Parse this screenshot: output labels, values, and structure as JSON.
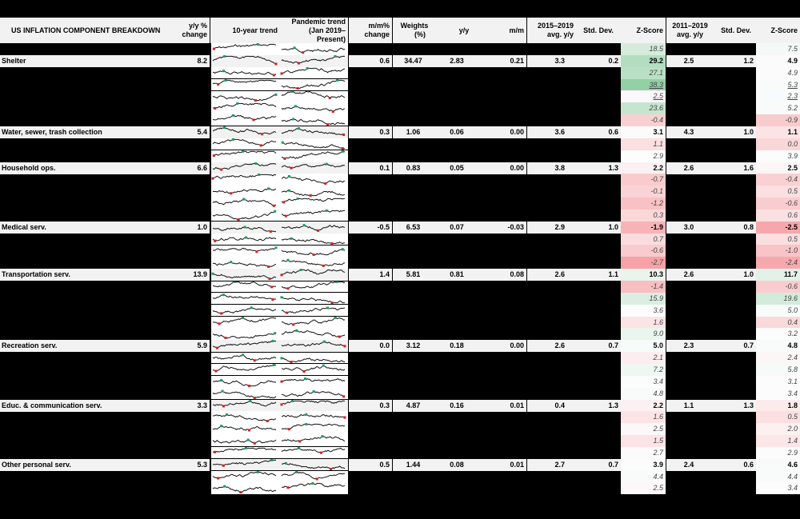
{
  "title": "US INFLATION COMPONENT BREAKDOWN",
  "headers": {
    "yy_change": [
      "y/y %",
      "change"
    ],
    "ten_year": "10-year trend",
    "pandemic": [
      "Pandemic trend",
      "(Jan 2019–Present)"
    ],
    "mm_change": [
      "m/m%",
      "change"
    ],
    "weights": [
      "Weights",
      "(%)"
    ],
    "yy": "y/y",
    "mm": "m/m",
    "avg_1519": [
      "2015–2019",
      "avg. y/y"
    ],
    "std1": "Std. Dev.",
    "z1": "Z-Score",
    "avg_1119": [
      "2011–2019",
      "avg. y/y"
    ],
    "std2": "Std. Dev.",
    "z2": "Z-Score"
  },
  "colors": {
    "header_bg": "#f2f2f2",
    "background": "#000000",
    "spark_high": "#1a9e5f",
    "spark_low": "#d62020"
  },
  "rows": [
    {
      "z1": "18.5",
      "z2": "7.5",
      "c1": "#d5ecdc",
      "c2": "#f4f9f7"
    },
    {
      "label": "Shelter",
      "yy_change": "8.2",
      "mm_change": "0.6",
      "weights": "34.47",
      "yy": "2.83",
      "mm": "0.21",
      "avg1": "3.3",
      "std1": "0.2",
      "z1": "29.2",
      "avg2": "2.5",
      "std2": "1.2",
      "z2": "4.9",
      "c1": "#b3ddc0",
      "c2": "#fbfbfb"
    },
    {
      "z1": "27.1",
      "z2": "4.9",
      "c1": "#b9e0c5",
      "c2": "#fbfbfb"
    },
    {
      "z1": "38.3",
      "z2": "5.3",
      "c1": "#93d0a6",
      "c2": "#f8fbfa",
      "ul": true
    },
    {
      "z1": "2.5",
      "z2": "2.3",
      "c1": "#fcf7fa",
      "c2": "#f8fbfb",
      "ul": true
    },
    {
      "z1": "23.6",
      "z2": "5.2",
      "c1": "#c6e5cf",
      "c2": "#f8fbfa"
    },
    {
      "z1": "-0.4",
      "z2": "-0.9",
      "c1": "#f9d0d2",
      "c2": "#f8cbcd"
    },
    {
      "label": "Water, sewer, trash collection",
      "yy_change": "5.4",
      "mm_change": "0.3",
      "weights": "1.06",
      "yy": "0.06",
      "mm": "0.00",
      "avg1": "3.6",
      "std1": "0.6",
      "z1": "3.1",
      "avg2": "4.3",
      "std2": "1.0",
      "z2": "1.1",
      "c1": "#fcfbfc",
      "c2": "#fce3e5"
    },
    {
      "z1": "1.1",
      "z2": "0.0",
      "c1": "#fbdfe1",
      "c2": "#f9d6d8"
    },
    {
      "z1": "2.9",
      "z2": "3.9",
      "c1": "#fdfdfd",
      "c2": "#fcfcfd"
    },
    {
      "label": "Household ops.",
      "yy_change": "6.6",
      "mm_change": "0.1",
      "weights": "0.83",
      "yy": "0.05",
      "mm": "0.00",
      "avg1": "3.8",
      "std1": "1.3",
      "z1": "2.2",
      "avg2": "2.6",
      "std2": "1.6",
      "z2": "2.5",
      "c1": "#fcf1f2",
      "c2": "#fcf6f7"
    },
    {
      "z1": "-0.7",
      "z2": "-0.4",
      "c1": "#f9cbcd",
      "c2": "#f9d1d3"
    },
    {
      "z1": "-0.1",
      "z2": "0.5",
      "c1": "#f9d3d5",
      "c2": "#fbdfe1"
    },
    {
      "z1": "-1.2",
      "z2": "-0.6",
      "c1": "#f8c1c4",
      "c2": "#f9cdd0"
    },
    {
      "z1": "0.3",
      "z2": "0.6",
      "c1": "#fad8da",
      "c2": "#fbe0e2"
    },
    {
      "label": "Medical serv.",
      "yy_change": "1.0",
      "mm_change": "-0.5",
      "weights": "6.53",
      "yy": "0.07",
      "mm": "-0.03",
      "avg1": "2.9",
      "std1": "1.0",
      "z1": "-1.9",
      "avg2": "3.0",
      "std2": "0.8",
      "z2": "-2.5",
      "c1": "#f7b3b6",
      "c2": "#f6a7ab"
    },
    {
      "z1": "0.7",
      "z2": "0.5",
      "c1": "#fadcde",
      "c2": "#fbdfe1"
    },
    {
      "z1": "-0.6",
      "z2": "-1.0",
      "c1": "#f9cbce",
      "c2": "#f8c4c7"
    },
    {
      "z1": "-2.7",
      "z2": "-2.4",
      "c1": "#f6a2a6",
      "c2": "#f6a9ac"
    },
    {
      "label": "Transportation serv.",
      "yy_change": "13.9",
      "mm_change": "1.4",
      "weights": "5.81",
      "yy": "0.81",
      "mm": "0.08",
      "avg1": "2.6",
      "std1": "1.1",
      "z1": "10.3",
      "avg2": "2.6",
      "std2": "1.0",
      "z2": "11.7",
      "c1": "#e8f4ec",
      "c2": "#e3f2e8"
    },
    {
      "z1": "-1.4",
      "z2": "-0.6",
      "c1": "#f8bec1",
      "c2": "#f9cdd0"
    },
    {
      "z1": "15.9",
      "z2": "19.6",
      "c1": "#dbeee1",
      "c2": "#d3ebdb"
    },
    {
      "z1": "3.6",
      "z2": "5.0",
      "c1": "#fcfcfd",
      "c2": "#f8fbfa"
    },
    {
      "z1": "1.6",
      "z2": "0.4",
      "c1": "#fce4e6",
      "c2": "#fad9db"
    },
    {
      "z1": "9.0",
      "z2": "3.2",
      "c1": "#eaf5ee",
      "c2": "#fcfcfd"
    },
    {
      "label": "Recreation serv.",
      "yy_change": "5.9",
      "mm_change": "0.0",
      "weights": "3.12",
      "yy": "0.18",
      "mm": "0.00",
      "avg1": "2.6",
      "std1": "0.7",
      "z1": "5.0",
      "avg2": "2.3",
      "std2": "0.7",
      "z2": "4.8",
      "c1": "#f7fbf9",
      "c2": "#f8fbfa"
    },
    {
      "z1": "2.1",
      "z2": "2.4",
      "c1": "#fcedef",
      "c2": "#fcf6f7"
    },
    {
      "z1": "7.2",
      "z2": "5.8",
      "c1": "#eff7f2",
      "c2": "#f6faf8"
    },
    {
      "z1": "3.4",
      "z2": "3.1",
      "c1": "#fcfcfd",
      "c2": "#fcfcfd"
    },
    {
      "z1": "4.8",
      "z2": "3.4",
      "c1": "#f8fbfa",
      "c2": "#fcfcfd"
    },
    {
      "label": "Educ. & communication serv.",
      "yy_change": "3.3",
      "mm_change": "0.3",
      "weights": "4.87",
      "yy": "0.16",
      "mm": "0.01",
      "avg1": "0.4",
      "std1": "1.3",
      "z1": "2.2",
      "avg2": "1.1",
      "std2": "1.3",
      "z2": "1.8",
      "c1": "#fcf1f2",
      "c2": "#fcebec"
    },
    {
      "z1": "1.6",
      "z2": "0.5",
      "c1": "#fce4e6",
      "c2": "#fbdfe1"
    },
    {
      "z1": "2.5",
      "z2": "2.0",
      "c1": "#fcf7f8",
      "c2": "#fcf0f1"
    },
    {
      "z1": "1.5",
      "z2": "1.4",
      "c1": "#fce3e5",
      "c2": "#fce6e8"
    },
    {
      "z1": "2.7",
      "z2": "2.9",
      "c1": "#fcfafb",
      "c2": "#fcfcfd"
    },
    {
      "label": "Other personal serv.",
      "yy_change": "5.3",
      "mm_change": "0.5",
      "weights": "1.44",
      "yy": "0.08",
      "mm": "0.01",
      "avg1": "2.7",
      "std1": "0.7",
      "z1": "3.9",
      "avg2": "2.4",
      "std2": "0.6",
      "z2": "4.6",
      "c1": "#fbfcfc",
      "c2": "#f9fbfb"
    },
    {
      "z1": "4.4",
      "z2": "4.4",
      "c1": "#f9fbfb",
      "c2": "#f9fbfb"
    },
    {
      "z1": "2.5",
      "z2": "3.4",
      "c1": "#fcf7f8",
      "c2": "#fcfcfd"
    }
  ],
  "spark_separators_after_rows": [
    2,
    3,
    6,
    8,
    14,
    16,
    19,
    20,
    21,
    22,
    25,
    26,
    27,
    29,
    33,
    34,
    35
  ]
}
